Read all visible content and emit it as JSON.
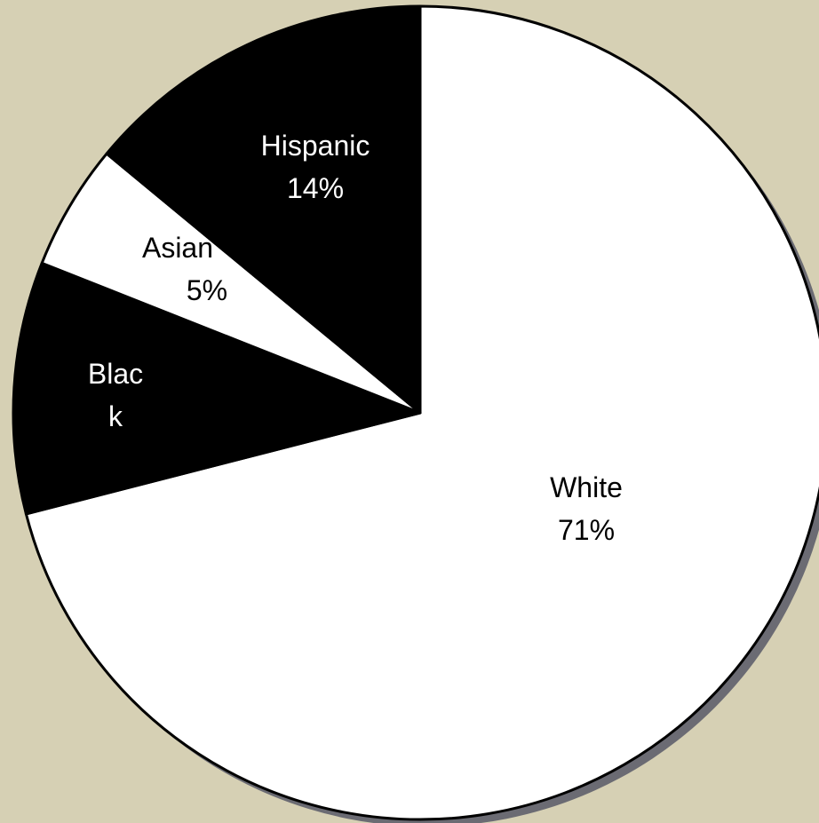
{
  "chart_data": {
    "type": "pie",
    "slices": [
      {
        "label": "White",
        "value_text": "71%",
        "value": 71,
        "fill": "#ffffff",
        "text_color": "#000000"
      },
      {
        "label": "Black",
        "label_lines": [
          "Blac",
          "k"
        ],
        "value_text": "",
        "value": 10,
        "fill": "#000000",
        "text_color": "#ffffff"
      },
      {
        "label": "Asian",
        "value_text": "5%",
        "value": 5,
        "fill": "#ffffff",
        "text_color": "#000000"
      },
      {
        "label": "Hispanic",
        "value_text": "14%",
        "value": 14,
        "fill": "#000000",
        "text_color": "#ffffff"
      }
    ],
    "start_angle_deg": 0,
    "direction": "clockwise",
    "background": "#d6d0b4",
    "shadow_color": "#6b6b73",
    "outline_color": "#000000"
  }
}
